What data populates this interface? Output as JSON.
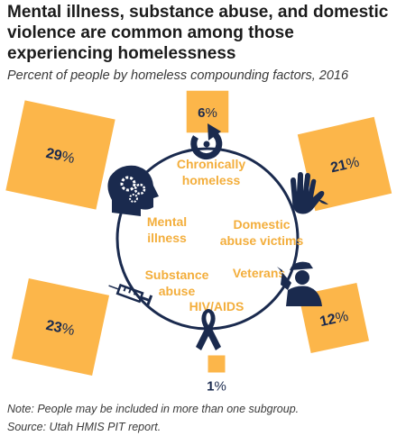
{
  "title": "Mental illness, substance abuse, and domestic violence are common among those experiencing homelessness",
  "subtitle": "Percent of people by homeless compounding factors, 2016",
  "note": "Note: People may be included in more than one subgroup.",
  "source": "Source: Utah HMIS PIT report.",
  "colors": {
    "box": "#fcb64a",
    "label": "#f3ae3c",
    "icon": "#1a2a4e",
    "circle": "#1a2a4e"
  },
  "chart_data": {
    "type": "proportional-area",
    "unit": "%",
    "year": 2016,
    "items": [
      {
        "name": "Chronically homeless",
        "lines": [
          "Chronically",
          "homeless"
        ],
        "value": 6,
        "label": "6",
        "icon": "circular-arrow-icon"
      },
      {
        "name": "Domestic abuse victims",
        "lines": [
          "Domestic",
          "abuse victims"
        ],
        "value": 21,
        "label": "21",
        "icon": "hand-icon"
      },
      {
        "name": "Veterans",
        "lines": [
          "Veterans"
        ],
        "value": 12,
        "label": "12",
        "icon": "saluting-soldier-icon"
      },
      {
        "name": "HIV/AIDS",
        "lines": [
          "HIV/AIDS"
        ],
        "value": 1,
        "label": "1",
        "icon": "awareness-ribbon-icon"
      },
      {
        "name": "Substance abuse",
        "lines": [
          "Substance",
          "abuse"
        ],
        "value": 23,
        "label": "23",
        "icon": "syringe-icon"
      },
      {
        "name": "Mental illness",
        "lines": [
          "Mental",
          "illness"
        ],
        "value": 29,
        "label": "29",
        "icon": "head-gears-icon"
      }
    ]
  }
}
